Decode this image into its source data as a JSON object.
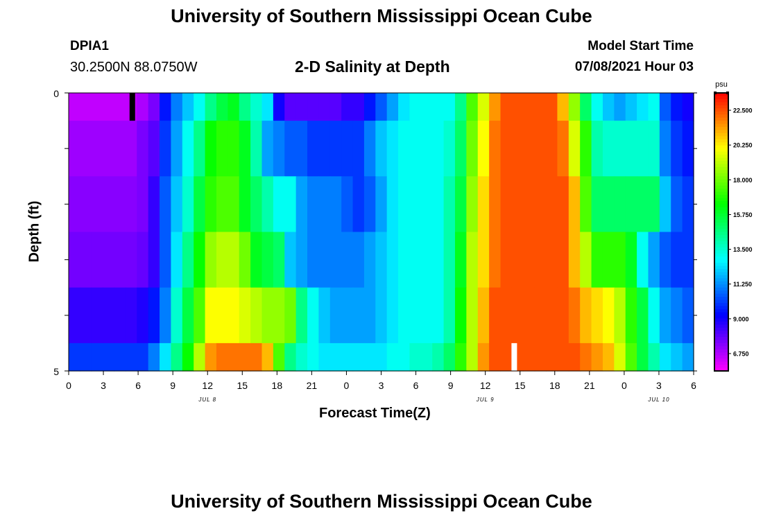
{
  "header": {
    "title": "University of Southern Mississippi Ocean Cube",
    "station_id": "DPIA1",
    "coordinates": "30.2500N  88.0750W",
    "subtitle": "2-D Salinity at Depth",
    "model_start_label": "Model Start Time",
    "model_start_value": "07/08/2021 Hour 03"
  },
  "footer": {
    "title": "University of Southern Mississippi Ocean Cube"
  },
  "chart_data": {
    "type": "heatmap",
    "title": "2-D Salinity at Depth",
    "xlabel": "Forecast Time(Z)",
    "ylabel": "Depth (ft)",
    "x_ticks": [
      "0",
      "3",
      "6",
      "9",
      "12",
      "15",
      "18",
      "21",
      "0",
      "3",
      "6",
      "9",
      "12",
      "15",
      "18",
      "21",
      "0",
      "3",
      "6"
    ],
    "date_labels": [
      {
        "label": "JUL 8",
        "tick_index": 4
      },
      {
        "label": "JUL 9",
        "tick_index": 12
      },
      {
        "label": "JUL 10",
        "tick_index": 17
      }
    ],
    "y_tick_labels": {
      "top": "0",
      "bottom": "5"
    },
    "ylim": [
      0,
      5
    ],
    "colorbar": {
      "unit": "psu",
      "min": 5.625,
      "max": 23.625,
      "ticks": [
        "22.500",
        "20.250",
        "18.000",
        "15.750",
        "13.500",
        "11.250",
        "9.000",
        "6.750"
      ]
    },
    "hours": [
      0,
      1,
      2,
      3,
      4,
      5,
      6,
      7,
      8,
      9,
      10,
      11,
      12,
      13,
      14,
      15,
      16,
      17,
      18,
      19,
      20,
      21,
      22,
      23,
      24,
      25,
      26,
      27,
      28,
      29,
      30,
      31,
      32,
      33,
      34,
      35,
      36,
      37,
      38,
      39,
      40,
      41,
      42,
      43,
      44,
      45,
      46,
      47,
      48,
      49,
      50,
      51,
      52,
      53,
      54
    ],
    "depth_rows": [
      {
        "depth_ft": 0.25,
        "values": [
          6.5,
          6.5,
          6.5,
          6.5,
          6.5,
          6.5,
          6.8,
          7.5,
          9.5,
          11.0,
          12.0,
          13.0,
          14.5,
          15.5,
          16.0,
          14.5,
          13.5,
          12.5,
          9.0,
          8.0,
          8.0,
          8.0,
          8.0,
          8.0,
          8.5,
          8.5,
          9.5,
          10.5,
          11.5,
          12.5,
          13.0,
          13.0,
          13.0,
          13.0,
          14.5,
          17.5,
          19.5,
          21.5,
          22.5,
          22.5,
          22.5,
          22.5,
          22.5,
          21.0,
          18.5,
          15.0,
          13.0,
          12.0,
          11.5,
          12.0,
          12.5,
          13.0,
          10.5,
          9.5,
          9.0
        ]
      },
      {
        "depth_ft": 1.0,
        "values": [
          7.0,
          7.0,
          7.0,
          7.0,
          7.0,
          7.0,
          7.5,
          8.0,
          10.0,
          11.5,
          13.0,
          14.5,
          16.5,
          17.0,
          17.0,
          16.0,
          14.0,
          11.5,
          11.0,
          10.5,
          10.5,
          10.0,
          10.0,
          10.0,
          10.0,
          10.0,
          11.0,
          12.0,
          12.5,
          13.0,
          13.0,
          13.0,
          13.0,
          13.5,
          15.0,
          18.0,
          20.0,
          22.0,
          22.5,
          22.5,
          22.5,
          22.5,
          22.5,
          22.0,
          19.5,
          17.0,
          14.0,
          13.5,
          13.5,
          13.5,
          13.5,
          13.5,
          11.0,
          10.0,
          9.5
        ]
      },
      {
        "depth_ft": 2.0,
        "values": [
          7.3,
          7.3,
          7.3,
          7.3,
          7.3,
          7.3,
          7.5,
          8.5,
          10.5,
          12.0,
          13.5,
          15.5,
          17.0,
          17.5,
          17.5,
          16.0,
          15.0,
          14.0,
          13.0,
          13.0,
          11.5,
          11.0,
          11.0,
          11.0,
          10.5,
          10.0,
          10.5,
          11.5,
          12.5,
          13.0,
          13.0,
          13.0,
          13.0,
          14.0,
          15.5,
          18.5,
          20.5,
          22.0,
          22.5,
          22.5,
          22.5,
          22.5,
          22.5,
          22.5,
          21.0,
          17.5,
          15.0,
          15.0,
          15.0,
          15.0,
          15.0,
          15.0,
          12.0,
          10.5,
          10.0
        ]
      },
      {
        "depth_ft": 3.0,
        "values": [
          7.6,
          7.6,
          7.6,
          7.6,
          7.6,
          7.6,
          7.8,
          8.5,
          10.5,
          12.5,
          14.5,
          16.5,
          18.5,
          19.0,
          19.0,
          18.0,
          16.0,
          15.5,
          15.0,
          12.0,
          11.5,
          11.0,
          11.0,
          11.0,
          11.0,
          11.0,
          11.5,
          12.0,
          12.5,
          13.0,
          13.0,
          13.0,
          13.0,
          14.0,
          16.0,
          19.0,
          20.5,
          22.0,
          22.5,
          22.5,
          22.5,
          22.5,
          22.5,
          22.5,
          21.0,
          19.0,
          17.0,
          17.0,
          17.0,
          16.0,
          13.0,
          11.5,
          10.5,
          10.0,
          10.0
        ]
      },
      {
        "depth_ft": 4.0,
        "values": [
          8.5,
          8.5,
          8.5,
          8.5,
          8.5,
          8.5,
          8.8,
          9.5,
          11.0,
          13.5,
          15.5,
          17.5,
          20.0,
          20.0,
          20.0,
          19.5,
          19.0,
          18.5,
          18.5,
          18.0,
          14.5,
          13.0,
          12.0,
          11.5,
          11.5,
          11.5,
          11.5,
          12.0,
          12.5,
          13.0,
          13.0,
          13.0,
          13.0,
          14.0,
          16.5,
          19.0,
          21.0,
          22.5,
          22.5,
          22.5,
          22.5,
          22.5,
          22.5,
          22.5,
          22.0,
          21.0,
          20.5,
          20.0,
          19.0,
          17.0,
          15.5,
          13.0,
          11.5,
          11.0,
          10.5
        ]
      },
      {
        "depth_ft": 4.75,
        "values": [
          10.0,
          10.0,
          10.0,
          10.0,
          10.0,
          10.0,
          10.0,
          11.0,
          12.5,
          14.5,
          16.5,
          19.0,
          21.5,
          22.0,
          22.0,
          22.0,
          22.0,
          21.0,
          17.5,
          14.5,
          13.5,
          13.0,
          12.5,
          12.5,
          12.5,
          12.5,
          12.5,
          12.5,
          13.0,
          13.0,
          13.5,
          13.5,
          14.0,
          15.0,
          17.0,
          19.0,
          21.5,
          22.5,
          22.5,
          22.5,
          22.5,
          22.5,
          22.5,
          22.5,
          22.5,
          22.0,
          21.5,
          21.0,
          19.5,
          17.5,
          15.5,
          14.0,
          12.5,
          12.0,
          11.5
        ]
      }
    ],
    "missing_cells": [
      {
        "hour": 5,
        "depth_ft": 0.25
      },
      {
        "hour": 38,
        "depth_ft": 4.75
      }
    ]
  }
}
